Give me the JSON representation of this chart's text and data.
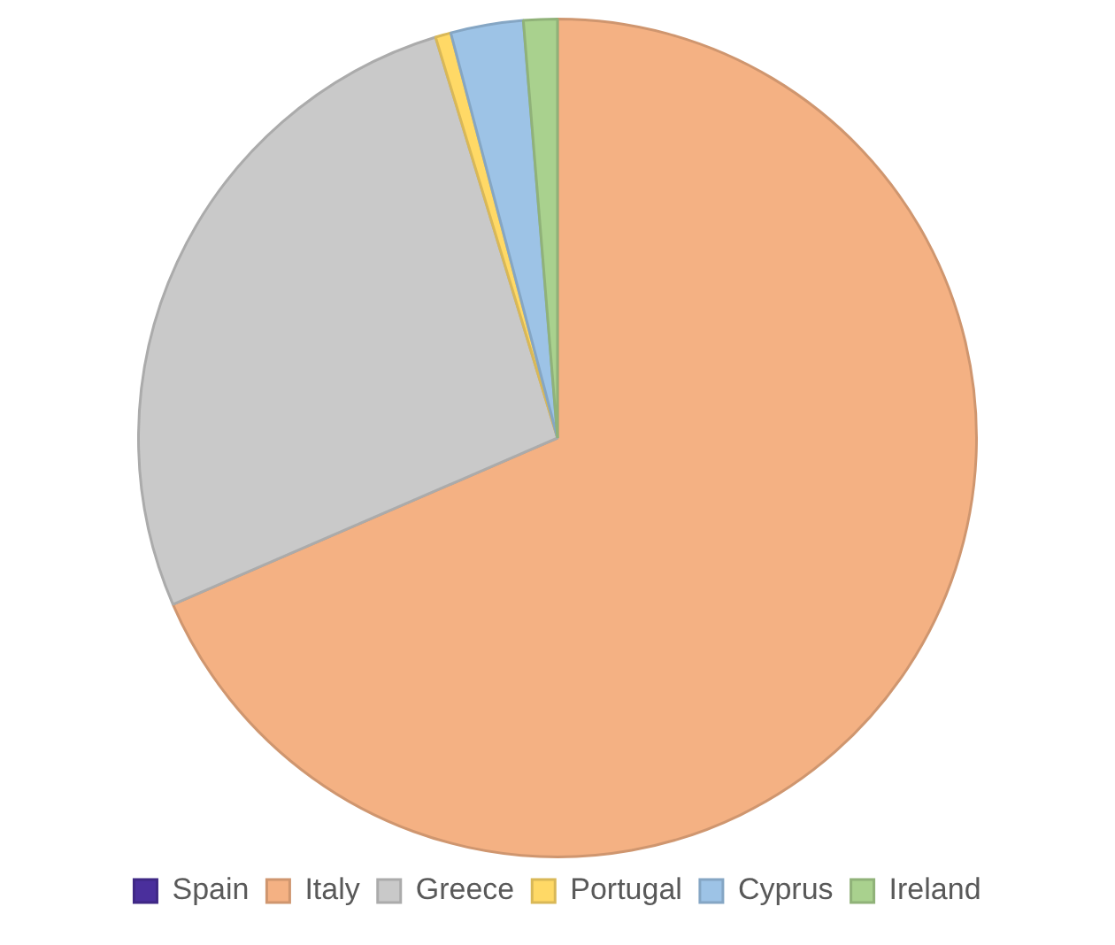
{
  "chart_data": {
    "type": "pie",
    "categories": [
      "Spain",
      "Italy",
      "Greece",
      "Portugal",
      "Cyprus",
      "Ireland"
    ],
    "values": [
      0,
      68.5,
      26.8,
      0.6,
      2.8,
      1.3
    ],
    "colors": [
      "#4a2f9c",
      "#f4b183",
      "#c9c9c9",
      "#ffd966",
      "#9dc3e6",
      "#a9d18e"
    ],
    "legend": "bottom"
  }
}
